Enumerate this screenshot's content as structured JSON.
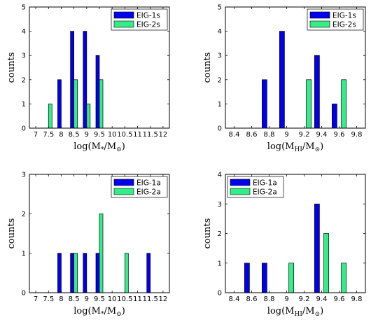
{
  "colors": {
    "series1": "#0000ee",
    "series2": "#33ee88",
    "edge": "#000000"
  },
  "chart_data": [
    {
      "type": "bar",
      "ylabel": "counts",
      "xlabel_text": {
        "pre": "log(M",
        "sub": "*",
        "mid": "/M",
        "sub2": "⊙",
        "post": ")"
      },
      "xlim": [
        6.75,
        12.25
      ],
      "ylim": [
        0,
        5
      ],
      "xticks": [
        7,
        7.5,
        8,
        8.5,
        9,
        9.5,
        10,
        10.5,
        11,
        11.5,
        12
      ],
      "xtick_labels": [
        "7",
        "7.5",
        "8",
        "8.5",
        "9",
        "9.5",
        "10",
        "10.5",
        "11",
        "11.5",
        "12"
      ],
      "yticks": [
        0,
        1,
        2,
        3,
        4,
        5
      ],
      "ytick_labels": [
        "0",
        "1",
        "2",
        "3",
        "4",
        "5"
      ],
      "legend_position": "top-right",
      "series": [
        {
          "name": "EIG-1s",
          "x": [
            7.5,
            8,
            8.5,
            9,
            9.5,
            10,
            10.5,
            11,
            11.5,
            12
          ],
          "values": [
            0,
            2,
            4,
            4,
            3,
            0,
            0,
            0,
            0,
            0
          ]
        },
        {
          "name": "EIG-2s",
          "x": [
            7.5,
            8,
            8.5,
            9,
            9.5,
            10,
            10.5,
            11,
            11.5,
            12
          ],
          "values": [
            1,
            0,
            2,
            1,
            2,
            0,
            0,
            0,
            0,
            0
          ]
        }
      ]
    },
    {
      "type": "bar",
      "ylabel": "counts",
      "xlabel_text": {
        "pre": "log(M",
        "sub": "HI",
        "mid": "/M",
        "sub2": "⊙",
        "post": ")"
      },
      "xlim": [
        8.3,
        9.9
      ],
      "ylim": [
        0,
        5
      ],
      "xticks": [
        8.4,
        8.6,
        8.8,
        9,
        9.2,
        9.4,
        9.6,
        9.8
      ],
      "xtick_labels": [
        "8.4",
        "8.6",
        "8.8",
        "9",
        "9.2",
        "9.4",
        "9.6",
        "9.8"
      ],
      "yticks": [
        0,
        1,
        2,
        3,
        4,
        5
      ],
      "ytick_labels": [
        "0",
        "1",
        "2",
        "3",
        "4",
        "5"
      ],
      "legend_position": "top-right",
      "series": [
        {
          "name": "EIG-1s",
          "x": [
            8.8,
            9.0,
            9.2,
            9.4,
            9.6
          ],
          "values": [
            2,
            4,
            0,
            3,
            1
          ]
        },
        {
          "name": "EIG-2s",
          "x": [
            8.8,
            9.0,
            9.2,
            9.4,
            9.6
          ],
          "values": [
            0,
            0,
            2,
            0,
            2
          ]
        }
      ]
    },
    {
      "type": "bar",
      "ylabel": "counts",
      "xlabel_text": {
        "pre": "log(M",
        "sub": "*",
        "mid": "/M",
        "sub2": "⊙",
        "post": ")"
      },
      "xlim": [
        6.75,
        12.25
      ],
      "ylim": [
        0,
        3
      ],
      "xticks": [
        7,
        7.5,
        8,
        8.5,
        9,
        9.5,
        10,
        10.5,
        11,
        11.5,
        12
      ],
      "xtick_labels": [
        "7",
        "7.5",
        "8",
        "8.5",
        "9",
        "9.5",
        "10",
        "10.5",
        "11",
        "11.5",
        "12"
      ],
      "yticks": [
        0,
        1,
        2,
        3
      ],
      "ytick_labels": [
        "0",
        "1",
        "2",
        "3"
      ],
      "legend_position": "top-right",
      "series": [
        {
          "name": "EIG-1a",
          "x": [
            8,
            8.5,
            9,
            9.5,
            10,
            10.5,
            11,
            11.5
          ],
          "values": [
            1,
            1,
            1,
            1,
            0,
            0,
            0,
            1
          ]
        },
        {
          "name": "EIG-2a",
          "x": [
            8,
            8.5,
            9,
            9.5,
            10,
            10.5,
            11,
            11.5
          ],
          "values": [
            0,
            1,
            0,
            2,
            0,
            1,
            0,
            0
          ]
        }
      ]
    },
    {
      "type": "bar",
      "ylabel": "counts",
      "xlabel_text": {
        "pre": "log(M",
        "sub": "HI",
        "mid": "/M",
        "sub2": "⊙",
        "post": ")"
      },
      "xlim": [
        8.3,
        9.9
      ],
      "ylim": [
        0,
        4
      ],
      "xticks": [
        8.4,
        8.6,
        8.8,
        9,
        9.2,
        9.4,
        9.6,
        9.8
      ],
      "xtick_labels": [
        "8.4",
        "8.6",
        "8.8",
        "9",
        "9.2",
        "9.4",
        "9.6",
        "9.8"
      ],
      "yticks": [
        0,
        1,
        2,
        3,
        4
      ],
      "ytick_labels": [
        "0",
        "1",
        "2",
        "3",
        "4"
      ],
      "legend_position": "top-left",
      "series": [
        {
          "name": "EIG-1a",
          "x": [
            8.6,
            8.8,
            9.0,
            9.4,
            9.6
          ],
          "values": [
            1,
            1,
            0,
            3,
            0
          ]
        },
        {
          "name": "EIG-2a",
          "x": [
            8.6,
            8.8,
            9.0,
            9.4,
            9.6
          ],
          "values": [
            0,
            0,
            1,
            2,
            1
          ]
        }
      ]
    }
  ]
}
